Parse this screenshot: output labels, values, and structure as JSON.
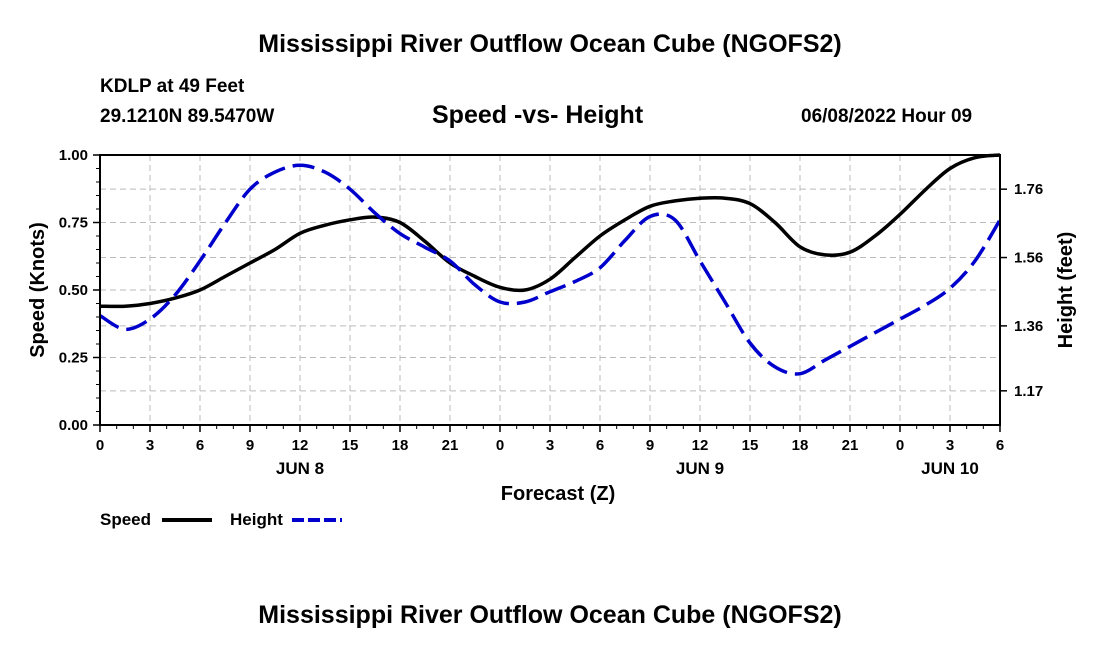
{
  "page": {
    "title_top": "Mississippi River Outflow Ocean Cube (NGOFS2)",
    "title_bottom": "Mississippi River Outflow Ocean Cube (NGOFS2)",
    "station": "KDLP at 49 Feet",
    "coordinates": "29.1210N  89.5470W",
    "timestamp": "06/08/2022 Hour 09"
  },
  "colors": {
    "speed": "#000000",
    "height": "#0000cc",
    "grid": "#bbbbbb"
  },
  "chart_data": {
    "type": "line",
    "title": "Speed -vs- Height",
    "xlabel": "Forecast (Z)",
    "ylabel": "Speed (Knots)",
    "y2label": "Height (feet)",
    "x_range_hours": [
      0,
      54
    ],
    "ylim": [
      0,
      1
    ],
    "y2lim": [
      1.07,
      1.86
    ],
    "grid": true,
    "x_ticks": [
      {
        "hour": 0,
        "label": "0"
      },
      {
        "hour": 3,
        "label": "3"
      },
      {
        "hour": 6,
        "label": "6"
      },
      {
        "hour": 9,
        "label": "9"
      },
      {
        "hour": 12,
        "label": "12"
      },
      {
        "hour": 15,
        "label": "15"
      },
      {
        "hour": 18,
        "label": "18"
      },
      {
        "hour": 21,
        "label": "21"
      },
      {
        "hour": 24,
        "label": "0"
      },
      {
        "hour": 27,
        "label": "3"
      },
      {
        "hour": 30,
        "label": "6"
      },
      {
        "hour": 33,
        "label": "9"
      },
      {
        "hour": 36,
        "label": "12"
      },
      {
        "hour": 39,
        "label": "15"
      },
      {
        "hour": 42,
        "label": "18"
      },
      {
        "hour": 45,
        "label": "21"
      },
      {
        "hour": 48,
        "label": "0"
      },
      {
        "hour": 51,
        "label": "3"
      },
      {
        "hour": 54,
        "label": "6"
      }
    ],
    "date_labels": [
      {
        "hour": 12,
        "label": "JUN 8"
      },
      {
        "hour": 36,
        "label": "JUN 9"
      },
      {
        "hour": 51,
        "label": "JUN 10"
      }
    ],
    "y_ticks": [
      {
        "value": 0.0,
        "label": "0.00"
      },
      {
        "value": 0.25,
        "label": "0.25"
      },
      {
        "value": 0.5,
        "label": "0.50"
      },
      {
        "value": 0.75,
        "label": "0.75"
      },
      {
        "value": 1.0,
        "label": "1.00"
      }
    ],
    "y2_ticks": [
      {
        "value": 1.17,
        "label": "1.17"
      },
      {
        "value": 1.36,
        "label": "1.36"
      },
      {
        "value": 1.56,
        "label": "1.56"
      },
      {
        "value": 1.76,
        "label": "1.76"
      }
    ],
    "legend": [
      {
        "name": "Speed",
        "style": "solid"
      },
      {
        "name": "Height",
        "style": "dashed"
      }
    ],
    "series": [
      {
        "name": "Speed",
        "axis": "left",
        "style": "solid",
        "x": [
          0,
          1.5,
          3,
          4.5,
          6,
          7.5,
          9,
          10.5,
          12,
          13.5,
          15,
          16.5,
          18,
          19.5,
          21,
          22.5,
          24,
          25.5,
          27,
          28.5,
          30,
          31.5,
          33,
          34.5,
          36,
          37.5,
          39,
          40.5,
          42,
          43.5,
          45,
          46.5,
          48,
          49.5,
          51,
          52.5,
          54
        ],
        "values": [
          0.44,
          0.44,
          0.45,
          0.47,
          0.5,
          0.55,
          0.6,
          0.65,
          0.71,
          0.74,
          0.76,
          0.77,
          0.75,
          0.68,
          0.6,
          0.55,
          0.51,
          0.5,
          0.54,
          0.62,
          0.7,
          0.76,
          0.81,
          0.83,
          0.84,
          0.84,
          0.82,
          0.75,
          0.66,
          0.63,
          0.64,
          0.7,
          0.78,
          0.87,
          0.95,
          0.99,
          1.0
        ]
      },
      {
        "name": "Height",
        "axis": "right",
        "style": "dashed",
        "x": [
          0,
          1.5,
          3,
          4.5,
          6,
          7.5,
          9,
          10.5,
          12,
          13.5,
          15,
          16.5,
          18,
          19.5,
          21,
          22.5,
          24,
          25.5,
          27,
          28.5,
          30,
          31.5,
          33,
          34.5,
          36,
          37.5,
          39,
          40.5,
          42,
          43.5,
          45,
          46.5,
          48,
          49.5,
          51,
          52.5,
          54
        ],
        "values": [
          1.39,
          1.35,
          1.38,
          1.45,
          1.55,
          1.66,
          1.76,
          1.81,
          1.83,
          1.81,
          1.76,
          1.69,
          1.63,
          1.59,
          1.55,
          1.48,
          1.43,
          1.43,
          1.46,
          1.49,
          1.53,
          1.61,
          1.68,
          1.67,
          1.55,
          1.43,
          1.31,
          1.24,
          1.22,
          1.26,
          1.3,
          1.34,
          1.38,
          1.42,
          1.47,
          1.55,
          1.67
        ]
      }
    ]
  }
}
